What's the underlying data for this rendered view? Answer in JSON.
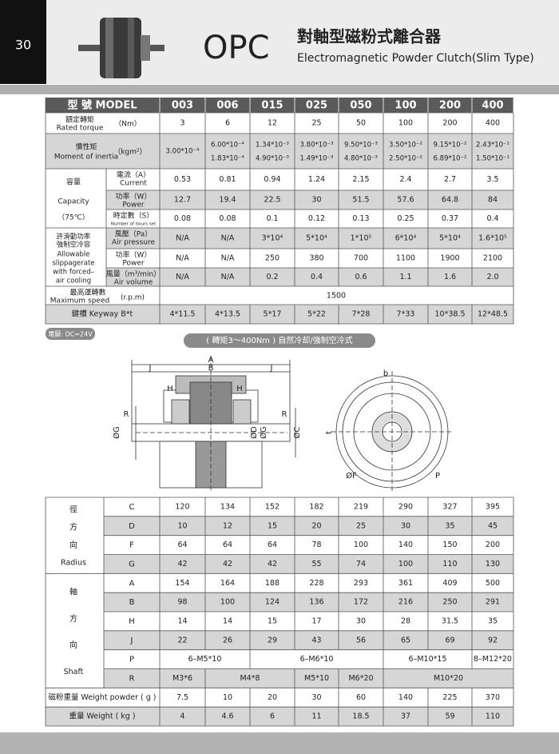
{
  "header": {
    "page_number": "30",
    "model": "OPC",
    "title_zh": "對軸型磁粉式離合器",
    "title_en": "Electromagnetic Powder Clutch(Slim Type)"
  },
  "spec_table": {
    "model_label": "型 號 MODEL",
    "models": [
      "003",
      "006",
      "015",
      "025",
      "050",
      "100",
      "200",
      "400"
    ],
    "rated_torque": {
      "label_zh": "額定轉矩",
      "label_en": "Rated torque",
      "unit": "（Nm）",
      "values": [
        "3",
        "6",
        "12",
        "25",
        "50",
        "100",
        "200",
        "400"
      ]
    },
    "inertia": {
      "label_zh": "慣性矩",
      "label_en": "Moment of inertia",
      "unit": "（kgm²）",
      "values": [
        [
          "3.00*10⁻⁴"
        ],
        [
          "6.00*10⁻⁴",
          "1.83*10⁻⁴"
        ],
        [
          "1.34*10⁻³",
          "4.90*10⁻³"
        ],
        [
          "3.80*10⁻³",
          "1.49*10⁻³"
        ],
        [
          "9.50*10⁻³",
          "4.80*10⁻³"
        ],
        [
          "3.50*10⁻²",
          "2.50*10⁻²"
        ],
        [
          "9.15*10⁻²",
          "6.89*10⁻²"
        ],
        [
          "2.43*10⁻¹",
          "1.50*10⁻¹"
        ]
      ]
    },
    "capacity": {
      "label_zh": "容量",
      "label_en": "Capacity",
      "note": "（75℃）",
      "rows": [
        {
          "label_zh": "電流（A）",
          "label_en": "Current",
          "values": [
            "0.53",
            "0.81",
            "0.94",
            "1.24",
            "2.15",
            "2.4",
            "2.7",
            "3.5"
          ]
        },
        {
          "label_zh": "功率（W）",
          "label_en": "Power",
          "values": [
            "12.7",
            "19.4",
            "22.5",
            "30",
            "51.5",
            "57.6",
            "64.8",
            "84"
          ]
        },
        {
          "label_zh": "時定數（S）",
          "label_en": "Number of hours set",
          "values": [
            "0.08",
            "0.08",
            "0.1",
            "0.12",
            "0.13",
            "0.25",
            "0.37",
            "0.4"
          ]
        }
      ]
    },
    "allowable": {
      "label_zh": [
        "許滑動功率",
        "強制空冷容"
      ],
      "label_en": [
        "Allowable",
        "slippagerate",
        "with forced–",
        "air cooling"
      ],
      "rows": [
        {
          "label_zh": "風壓（Pa）",
          "label_en": "Air pressure",
          "values": [
            "N/A",
            "N/A",
            "3*10⁴",
            "5*10⁴",
            "1*10⁵",
            "6*10⁴",
            "5*10⁴",
            "1.6*10⁵"
          ]
        },
        {
          "label_zh": "功率（W）",
          "label_en": "Power",
          "values": [
            "N/A",
            "N/A",
            "250",
            "380",
            "700",
            "1100",
            "1900",
            "2100"
          ]
        },
        {
          "label_zh": "風量（m³/min）",
          "label_en": "Air volume",
          "values": [
            "N/A",
            "N/A",
            "0.2",
            "0.4",
            "0.6",
            "1.1",
            "1.6",
            "2.0"
          ]
        }
      ]
    },
    "max_speed": {
      "label_zh": "最高運轉數",
      "label_en": "Maximum speed",
      "unit": "(r.p.m)",
      "value": "1500"
    },
    "keyway": {
      "label": "鍵槽 Keyway B*t",
      "values": [
        "4*11.5",
        "4*13.5",
        "5*17",
        "5*22",
        "7*28",
        "7*33",
        "10*38.5",
        "12*48.5"
      ]
    }
  },
  "voltage": "電壓: DC=24V",
  "range_banner": "( 轉矩3～400Nm ) 自然冷却/強制空冷式",
  "drawing": {
    "labels": [
      "A",
      "B",
      "J",
      "J",
      "H",
      "H",
      "R",
      "R",
      "ØG",
      "ØD",
      "ØG",
      "ØC",
      "b",
      "t",
      "ØF",
      "P"
    ]
  },
  "dim_table": {
    "radius_group": {
      "label_zh": [
        "徑",
        "方",
        "向"
      ],
      "label_en": "Radius",
      "rows": [
        {
          "key": "C",
          "values": [
            "120",
            "134",
            "152",
            "182",
            "219",
            "290",
            "327",
            "395"
          ]
        },
        {
          "key": "D",
          "values": [
            "10",
            "12",
            "15",
            "20",
            "25",
            "30",
            "35",
            "45"
          ]
        },
        {
          "key": "F",
          "values": [
            "64",
            "64",
            "64",
            "78",
            "100",
            "140",
            "150",
            "200"
          ]
        },
        {
          "key": "G",
          "values": [
            "42",
            "42",
            "42",
            "55",
            "74",
            "100",
            "110",
            "130"
          ]
        }
      ]
    },
    "shaft_group": {
      "label_zh": [
        "軸",
        "方",
        "向"
      ],
      "label_en": "Shaft",
      "rows": [
        {
          "key": "A",
          "values": [
            "154",
            "164",
            "188",
            "228",
            "293",
            "361",
            "409",
            "500"
          ]
        },
        {
          "key": "B",
          "values": [
            "98",
            "100",
            "124",
            "136",
            "172",
            "216",
            "250",
            "291"
          ]
        },
        {
          "key": "H",
          "values": [
            "14",
            "14",
            "15",
            "17",
            "30",
            "28",
            "31.5",
            "35"
          ]
        },
        {
          "key": "J",
          "values": [
            "22",
            "26",
            "29",
            "43",
            "56",
            "65",
            "69",
            "92"
          ]
        },
        {
          "key": "P",
          "values": [
            "6–M5*10",
            "6–M6*10",
            "6–M10*15",
            "8–M12*20"
          ]
        },
        {
          "key": "R",
          "values": [
            "M3*6",
            "M4*8",
            "M5*10",
            "M6*20",
            "M10*20"
          ]
        }
      ]
    },
    "weight_powder": {
      "label": "磁粉重量 Weight powder ( g )",
      "values": [
        "7.5",
        "10",
        "20",
        "30",
        "60",
        "140",
        "225",
        "370"
      ]
    },
    "weight": {
      "label": "重量 Weight ( kg )",
      "values": [
        "4",
        "4.6",
        "6",
        "11",
        "18.5",
        "37",
        "59",
        "110"
      ]
    }
  }
}
